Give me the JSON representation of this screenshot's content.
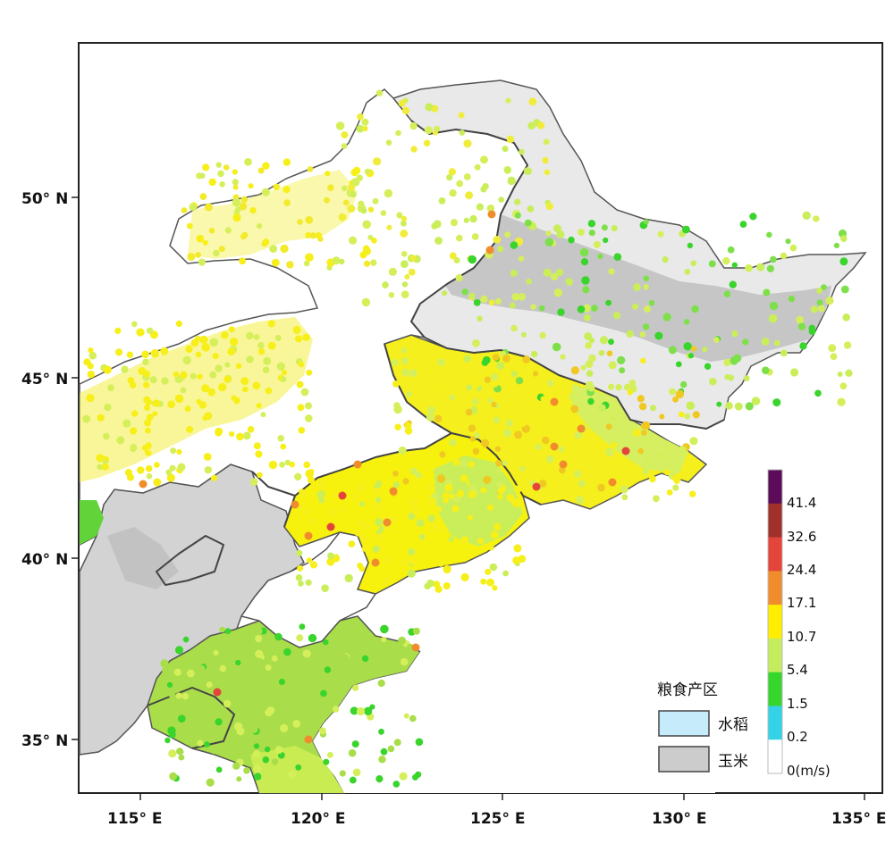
{
  "colors": {
    "rice": "#c6ecfc",
    "corn": "#cccccc",
    "background": "#ffffff",
    "border": "#444444"
  },
  "axes": {
    "lat_labels": [
      "50° N",
      "45° N",
      "40° N",
      "35° N"
    ],
    "lon_labels": [
      "115° E",
      "120° E",
      "125° E",
      "130° E",
      "135° E"
    ]
  },
  "colorbar": {
    "labels": [
      "41.4",
      "32.6",
      "24.4",
      "17.1",
      "10.7",
      "5.4",
      "1.5",
      "0.2",
      "0(m/s)"
    ],
    "bands": [
      {
        "color": "#5b0b57"
      },
      {
        "color": "#a0302c"
      },
      {
        "color": "#e4453b"
      },
      {
        "color": "#f08c2c"
      },
      {
        "color": "#ffee00"
      },
      {
        "color": "#c4ec5e"
      },
      {
        "color": "#37d62c"
      },
      {
        "color": "#34d2e6"
      },
      {
        "color": "#ffffff"
      }
    ]
  },
  "legend": {
    "title": "粮食产区",
    "items": [
      {
        "label": "水稻",
        "color": "#c6ecfc"
      },
      {
        "label": "玉米",
        "color": "#cccccc"
      }
    ]
  }
}
